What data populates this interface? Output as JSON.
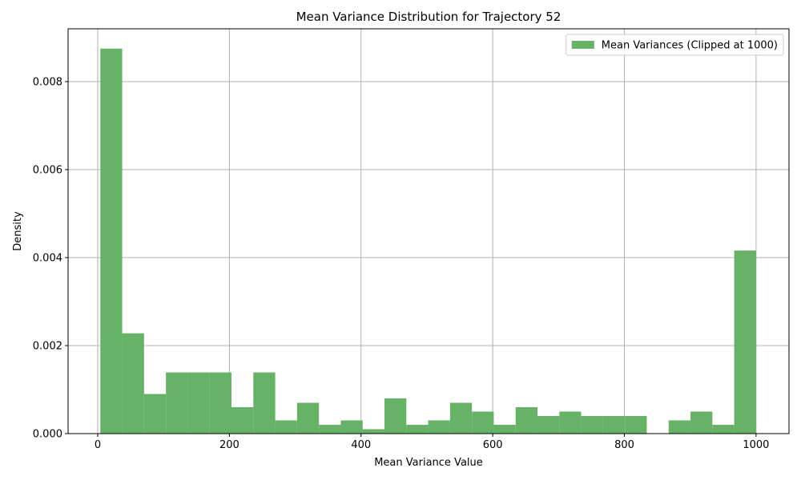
{
  "chart_data": {
    "type": "bar",
    "title": "Mean Variance Distribution for Trajectory 52",
    "xlabel": "Mean Variance Value",
    "ylabel": "Density",
    "xlim": [
      -45,
      1050
    ],
    "ylim": [
      0,
      0.0092
    ],
    "xticks": [
      0,
      200,
      400,
      600,
      800,
      1000
    ],
    "yticks": [
      0.0,
      0.002,
      0.004,
      0.006,
      0.008
    ],
    "ytick_labels": [
      "0.000",
      "0.002",
      "0.004",
      "0.006",
      "0.008"
    ],
    "grid": true,
    "legend": {
      "placement": "top-right",
      "label": "Mean Variances (Clipped at 1000)"
    },
    "color": "#66b266",
    "bins": [
      {
        "x0": 4.0,
        "x1": 37.2,
        "density": 0.00875
      },
      {
        "x0": 37.2,
        "x1": 70.4,
        "density": 0.00228
      },
      {
        "x0": 70.4,
        "x1": 103.6,
        "density": 0.0009
      },
      {
        "x0": 103.6,
        "x1": 136.8,
        "density": 0.00139
      },
      {
        "x0": 136.8,
        "x1": 170.0,
        "density": 0.00139
      },
      {
        "x0": 170.0,
        "x1": 203.2,
        "density": 0.00139
      },
      {
        "x0": 203.2,
        "x1": 236.4,
        "density": 0.0006
      },
      {
        "x0": 236.4,
        "x1": 269.6,
        "density": 0.00139
      },
      {
        "x0": 269.6,
        "x1": 302.8,
        "density": 0.0003
      },
      {
        "x0": 302.8,
        "x1": 336.0,
        "density": 0.0007
      },
      {
        "x0": 336.0,
        "x1": 369.2,
        "density": 0.0002
      },
      {
        "x0": 369.2,
        "x1": 402.4,
        "density": 0.0003
      },
      {
        "x0": 402.4,
        "x1": 435.6,
        "density": 0.0001
      },
      {
        "x0": 435.6,
        "x1": 468.8,
        "density": 0.0008
      },
      {
        "x0": 468.8,
        "x1": 502.0,
        "density": 0.0002
      },
      {
        "x0": 502.0,
        "x1": 535.2,
        "density": 0.0003
      },
      {
        "x0": 535.2,
        "x1": 568.4,
        "density": 0.0007
      },
      {
        "x0": 568.4,
        "x1": 601.6,
        "density": 0.0005
      },
      {
        "x0": 601.6,
        "x1": 634.8,
        "density": 0.0002
      },
      {
        "x0": 634.8,
        "x1": 668.0,
        "density": 0.0006
      },
      {
        "x0": 668.0,
        "x1": 701.2,
        "density": 0.0004
      },
      {
        "x0": 701.2,
        "x1": 734.4,
        "density": 0.0005
      },
      {
        "x0": 734.4,
        "x1": 767.6,
        "density": 0.0004
      },
      {
        "x0": 767.6,
        "x1": 800.8,
        "density": 0.0004
      },
      {
        "x0": 800.8,
        "x1": 834.0,
        "density": 0.0004
      },
      {
        "x0": 834.0,
        "x1": 867.2,
        "density": 0.0
      },
      {
        "x0": 867.2,
        "x1": 900.4,
        "density": 0.0003
      },
      {
        "x0": 900.4,
        "x1": 933.6,
        "density": 0.0005
      },
      {
        "x0": 933.6,
        "x1": 966.8,
        "density": 0.0002
      },
      {
        "x0": 966.8,
        "x1": 1000.0,
        "density": 0.00416
      }
    ]
  }
}
